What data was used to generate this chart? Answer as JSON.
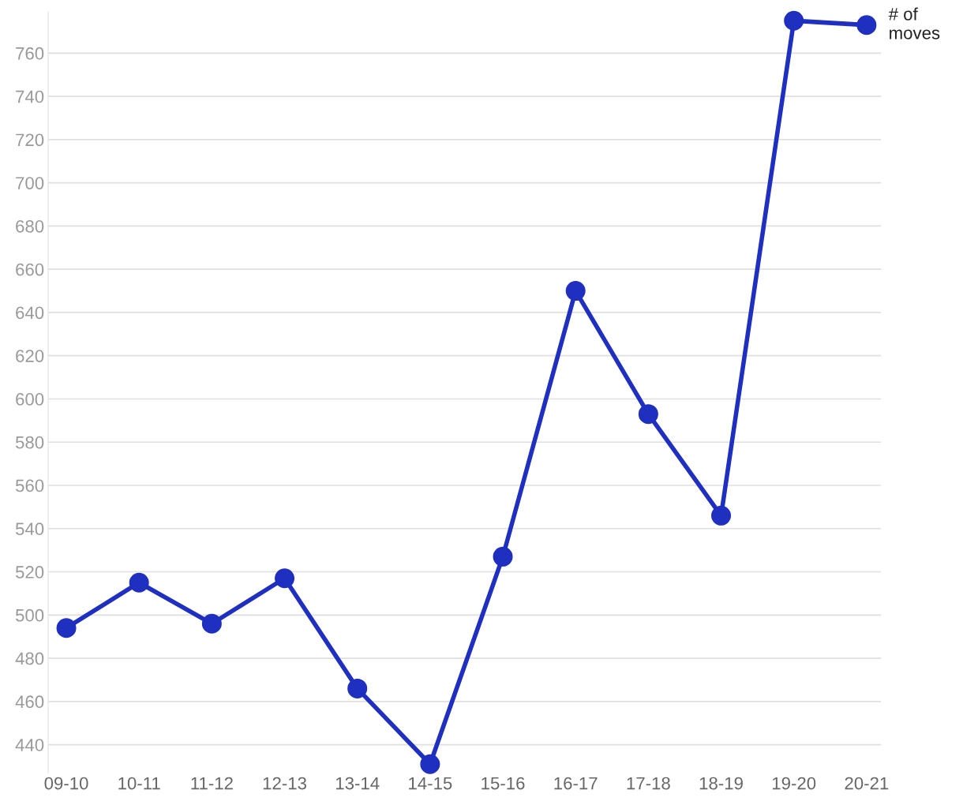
{
  "chart_data": {
    "type": "line",
    "categories": [
      "09-10",
      "10-11",
      "11-12",
      "12-13",
      "13-14",
      "14-15",
      "15-16",
      "16-17",
      "17-18",
      "18-19",
      "19-20",
      "20-21"
    ],
    "series": [
      {
        "name": "# of moves",
        "color": "#1f2fbf",
        "values": [
          494,
          515,
          496,
          517,
          466,
          431,
          527,
          650,
          593,
          546,
          775,
          773
        ]
      }
    ],
    "ylim": [
      427,
      779
    ],
    "yticks": [
      440,
      460,
      480,
      500,
      520,
      540,
      560,
      580,
      600,
      620,
      640,
      660,
      680,
      700,
      720,
      740,
      760
    ],
    "grid": "y",
    "marker": "circle",
    "line_style": "solid",
    "legend": "top right"
  }
}
